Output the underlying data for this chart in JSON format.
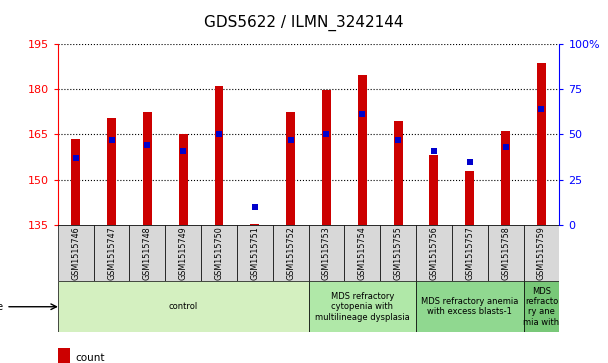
{
  "title": "GDS5622 / ILMN_3242144",
  "samples": [
    "GSM1515746",
    "GSM1515747",
    "GSM1515748",
    "GSM1515749",
    "GSM1515750",
    "GSM1515751",
    "GSM1515752",
    "GSM1515753",
    "GSM1515754",
    "GSM1515755",
    "GSM1515756",
    "GSM1515757",
    "GSM1515758",
    "GSM1515759"
  ],
  "counts": [
    163.5,
    170.5,
    172.5,
    165.0,
    181.0,
    135.3,
    172.5,
    179.5,
    184.5,
    169.5,
    158.0,
    153.0,
    166.0,
    188.5
  ],
  "percentile_ranks": [
    37,
    47,
    44,
    41,
    50,
    10,
    47,
    50,
    61,
    47,
    41,
    35,
    43,
    64
  ],
  "ymin": 135,
  "ymax": 195,
  "yticks": [
    135,
    150,
    165,
    180,
    195
  ],
  "right_yticks": [
    0,
    25,
    50,
    75,
    100
  ],
  "right_ylabels": [
    "0",
    "25",
    "50",
    "75",
    "100%"
  ],
  "disease_groups": [
    {
      "label": "control",
      "start": 0,
      "end": 7,
      "color": "#d4f0c0"
    },
    {
      "label": "MDS refractory\ncytopenia with\nmultilineage dysplasia",
      "start": 7,
      "end": 10,
      "color": "#b0e8a8"
    },
    {
      "label": "MDS refractory anemia\nwith excess blasts-1",
      "start": 10,
      "end": 13,
      "color": "#90d890"
    },
    {
      "label": "MDS\nrefracto\nry ane\nmia with",
      "start": 13,
      "end": 14,
      "color": "#78c878"
    }
  ],
  "bar_color": "#cc0000",
  "dot_color": "#0000cc",
  "bar_width": 0.25,
  "dot_size": 18,
  "grid_color": "#000000",
  "grid_style": "dotted"
}
